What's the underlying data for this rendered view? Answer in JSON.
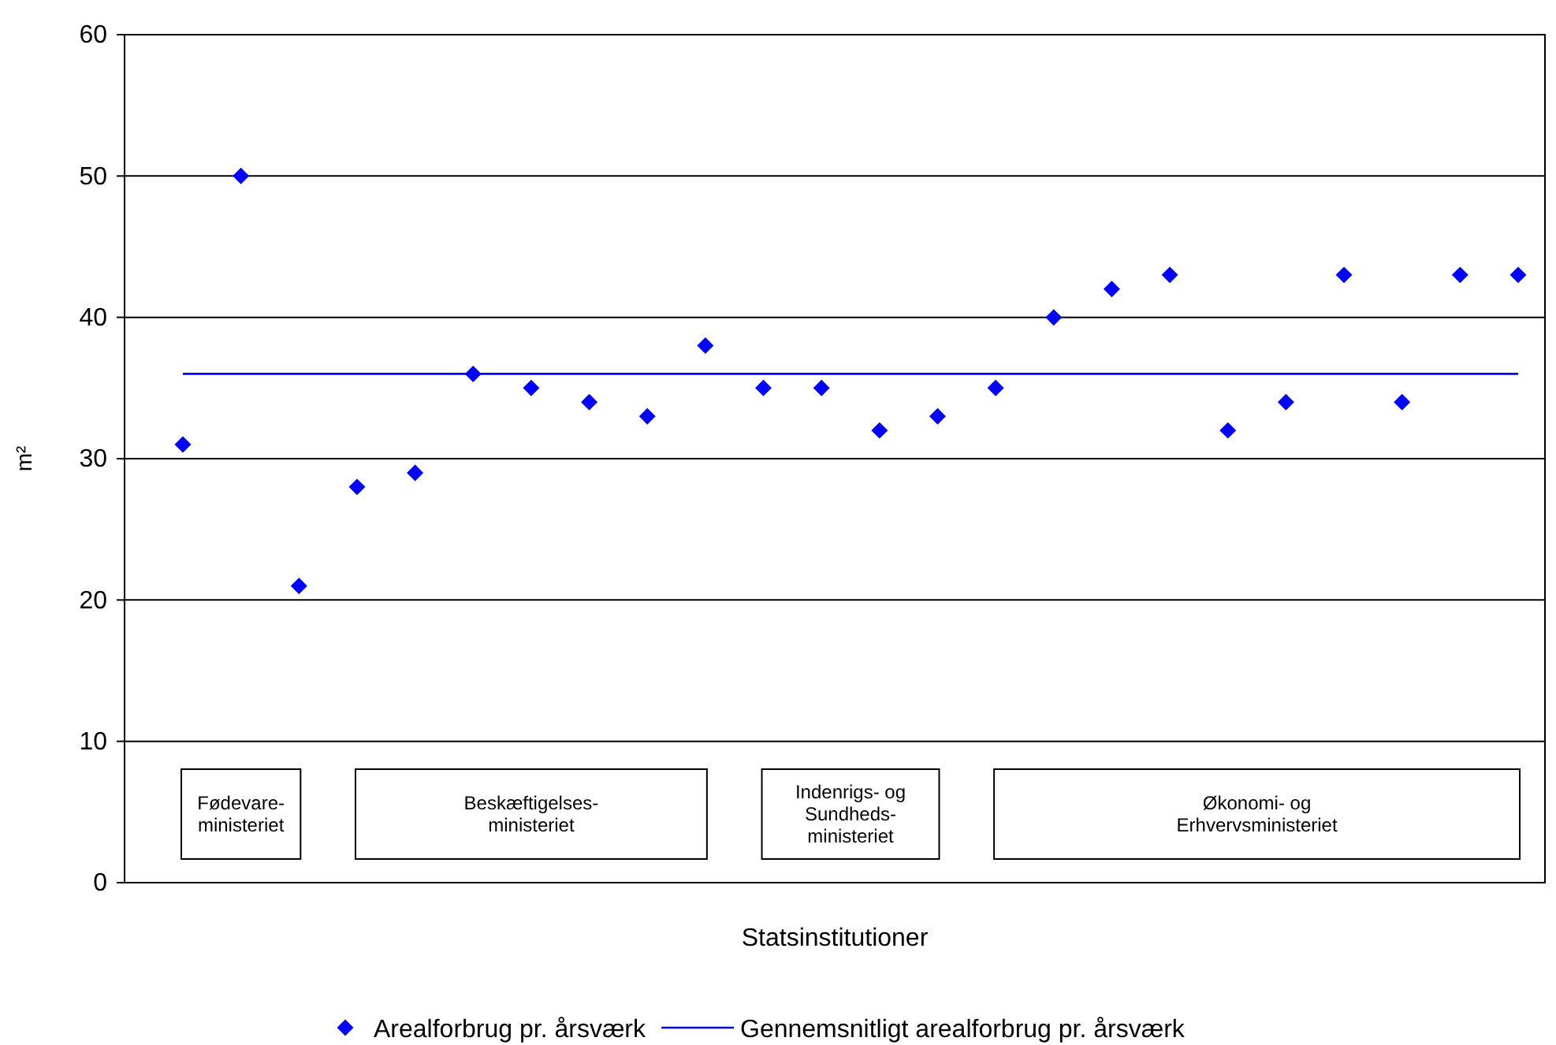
{
  "chart_data": {
    "type": "scatter",
    "xlabel": "Statsinstitutioner",
    "ylabel": "m²",
    "categories": [
      null,
      null,
      null,
      null,
      null,
      null,
      null,
      null,
      null,
      null,
      null,
      null,
      null,
      null,
      null,
      null,
      null,
      null,
      null,
      null,
      null,
      null,
      null,
      null
    ],
    "series": [
      {
        "name": "Arealforbrug pr. årsværk",
        "color": "#0000ff",
        "marker": "diamond",
        "values": [
          31,
          50,
          21,
          28,
          29,
          36,
          35,
          34,
          33,
          38,
          35,
          35,
          32,
          33,
          35,
          40,
          42,
          43,
          32,
          34,
          43,
          34,
          43,
          43
        ]
      },
      {
        "name": "Gennemsnitligt arealforbrug pr. årsværk",
        "type": "line",
        "color": "#0000ff",
        "marker": "none",
        "line_style": "solid",
        "values": [
          36,
          36,
          36,
          36,
          36,
          36,
          36,
          36,
          36,
          36,
          36,
          36,
          36,
          36,
          36,
          36,
          36,
          36,
          36,
          36,
          36,
          36,
          36,
          36
        ]
      }
    ],
    "annotations": [
      "Fødevare-\nministeriet",
      "Beskæftigelses-\nministeriet",
      "Indenrigs- og\nSundheds-\nministeriet",
      "Økonomi- og\nErhvervsministeriet"
    ],
    "ylim": [
      0,
      60
    ],
    "yticks": [
      0,
      10,
      20,
      30,
      40,
      50,
      60
    ],
    "grid": "y",
    "legend": "bottom"
  }
}
